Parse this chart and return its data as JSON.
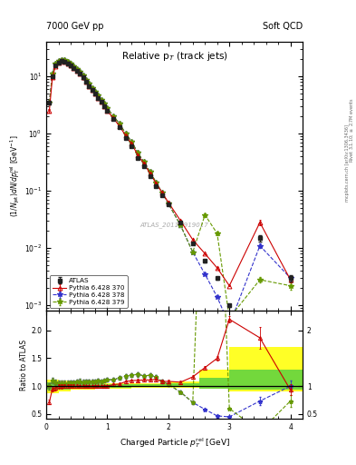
{
  "title_left": "7000 GeV pp",
  "title_right": "Soft QCD",
  "plot_title": "Relative p$_{T}$ (track jets)",
  "watermark": "ATLAS_2011_I919017",
  "atlas_x": [
    0.05,
    0.1,
    0.15,
    0.2,
    0.25,
    0.3,
    0.35,
    0.4,
    0.45,
    0.5,
    0.55,
    0.6,
    0.65,
    0.7,
    0.75,
    0.8,
    0.85,
    0.9,
    0.95,
    1.0,
    1.1,
    1.2,
    1.3,
    1.4,
    1.5,
    1.6,
    1.7,
    1.8,
    1.9,
    2.0,
    2.2,
    2.4,
    2.6,
    2.8,
    3.0,
    3.5,
    4.0
  ],
  "atlas_y": [
    3.5,
    10.0,
    15.5,
    17.5,
    18.5,
    18.0,
    17.0,
    15.5,
    14.0,
    12.5,
    11.0,
    9.5,
    8.0,
    6.8,
    5.8,
    5.0,
    4.2,
    3.6,
    3.0,
    2.5,
    1.8,
    1.3,
    0.85,
    0.6,
    0.38,
    0.27,
    0.18,
    0.12,
    0.085,
    0.058,
    0.028,
    0.012,
    0.006,
    0.003,
    0.001,
    0.015,
    0.003
  ],
  "atlas_ye": [
    0.3,
    0.5,
    0.7,
    0.8,
    0.8,
    0.7,
    0.7,
    0.6,
    0.5,
    0.5,
    0.4,
    0.4,
    0.3,
    0.3,
    0.2,
    0.2,
    0.15,
    0.13,
    0.1,
    0.09,
    0.06,
    0.05,
    0.03,
    0.025,
    0.015,
    0.011,
    0.007,
    0.005,
    0.003,
    0.002,
    0.001,
    0.0005,
    0.0003,
    0.00015,
    5e-05,
    0.002,
    0.0004
  ],
  "py370_x": [
    0.05,
    0.1,
    0.15,
    0.2,
    0.25,
    0.3,
    0.35,
    0.4,
    0.45,
    0.5,
    0.55,
    0.6,
    0.65,
    0.7,
    0.75,
    0.8,
    0.85,
    0.9,
    0.95,
    1.0,
    1.1,
    1.2,
    1.3,
    1.4,
    1.5,
    1.6,
    1.7,
    1.8,
    1.9,
    2.0,
    2.2,
    2.4,
    2.6,
    2.8,
    3.0,
    3.5,
    4.0
  ],
  "py370_y": [
    2.5,
    9.5,
    15.0,
    17.5,
    18.5,
    18.0,
    17.0,
    15.5,
    14.0,
    12.5,
    11.0,
    9.5,
    8.0,
    6.8,
    5.8,
    5.0,
    4.2,
    3.6,
    3.0,
    2.5,
    1.85,
    1.35,
    0.92,
    0.66,
    0.42,
    0.3,
    0.2,
    0.135,
    0.092,
    0.063,
    0.03,
    0.014,
    0.008,
    0.0045,
    0.0022,
    0.028,
    0.0028
  ],
  "py370_ye": [
    0.15,
    0.4,
    0.6,
    0.7,
    0.7,
    0.6,
    0.5,
    0.45,
    0.4,
    0.35,
    0.3,
    0.25,
    0.22,
    0.18,
    0.15,
    0.12,
    0.1,
    0.09,
    0.07,
    0.06,
    0.04,
    0.03,
    0.02,
    0.015,
    0.01,
    0.007,
    0.005,
    0.004,
    0.003,
    0.002,
    0.0008,
    0.0004,
    0.0002,
    0.0001,
    6e-05,
    0.003,
    0.0003
  ],
  "py378_x": [
    0.05,
    0.1,
    0.15,
    0.2,
    0.25,
    0.3,
    0.35,
    0.4,
    0.45,
    0.5,
    0.55,
    0.6,
    0.65,
    0.7,
    0.75,
    0.8,
    0.85,
    0.9,
    0.95,
    1.0,
    1.1,
    1.2,
    1.3,
    1.4,
    1.5,
    1.6,
    1.7,
    1.8,
    1.9,
    2.0,
    2.2,
    2.4,
    2.6,
    2.8,
    3.0,
    3.5,
    4.0
  ],
  "py378_y": [
    3.5,
    11.0,
    16.5,
    18.5,
    19.5,
    19.0,
    18.0,
    16.5,
    15.0,
    13.5,
    12.0,
    10.2,
    8.7,
    7.4,
    6.3,
    5.4,
    4.6,
    3.9,
    3.3,
    2.8,
    2.0,
    1.5,
    1.0,
    0.72,
    0.46,
    0.32,
    0.215,
    0.14,
    0.092,
    0.06,
    0.025,
    0.0085,
    0.0035,
    0.0014,
    0.00045,
    0.011,
    0.003
  ],
  "py378_ye": [
    0.2,
    0.5,
    0.7,
    0.8,
    0.8,
    0.7,
    0.65,
    0.55,
    0.5,
    0.45,
    0.4,
    0.35,
    0.3,
    0.25,
    0.2,
    0.18,
    0.15,
    0.12,
    0.1,
    0.085,
    0.06,
    0.045,
    0.03,
    0.022,
    0.014,
    0.01,
    0.007,
    0.004,
    0.003,
    0.002,
    0.0007,
    0.0003,
    0.00012,
    5e-05,
    2e-05,
    0.001,
    0.0003
  ],
  "py379_x": [
    0.05,
    0.1,
    0.15,
    0.2,
    0.25,
    0.3,
    0.35,
    0.4,
    0.45,
    0.5,
    0.55,
    0.6,
    0.65,
    0.7,
    0.75,
    0.8,
    0.85,
    0.9,
    0.95,
    1.0,
    1.1,
    1.2,
    1.3,
    1.4,
    1.5,
    1.6,
    1.7,
    1.8,
    1.9,
    2.0,
    2.2,
    2.4,
    2.6,
    2.8,
    3.0,
    3.5,
    4.0
  ],
  "py379_y": [
    3.5,
    11.0,
    16.5,
    18.5,
    19.5,
    19.0,
    18.0,
    16.5,
    15.0,
    13.5,
    12.0,
    10.2,
    8.7,
    7.4,
    6.3,
    5.4,
    4.6,
    3.9,
    3.3,
    2.8,
    2.0,
    1.5,
    1.0,
    0.72,
    0.46,
    0.32,
    0.215,
    0.14,
    0.092,
    0.06,
    0.025,
    0.0085,
    0.038,
    0.018,
    0.0006,
    0.0028,
    0.0022
  ],
  "py379_ye": [
    0.2,
    0.5,
    0.7,
    0.8,
    0.8,
    0.7,
    0.65,
    0.55,
    0.5,
    0.45,
    0.4,
    0.35,
    0.3,
    0.25,
    0.2,
    0.18,
    0.15,
    0.12,
    0.1,
    0.085,
    0.06,
    0.045,
    0.03,
    0.022,
    0.014,
    0.01,
    0.007,
    0.004,
    0.003,
    0.002,
    0.0007,
    0.0003,
    0.003,
    0.0015,
    2e-05,
    0.0003,
    0.0003
  ],
  "color_atlas": "#222222",
  "color_py370": "#cc0000",
  "color_py378": "#3333cc",
  "color_py379": "#669900",
  "band_yellow_edges": [
    0.0,
    0.2,
    0.4,
    0.6,
    0.8,
    1.0,
    1.2,
    1.4,
    1.6,
    1.8,
    2.0,
    2.5,
    3.0,
    4.2
  ],
  "band_yellow_lo": [
    0.88,
    0.9,
    0.93,
    0.94,
    0.95,
    0.95,
    0.96,
    0.97,
    0.97,
    0.97,
    0.97,
    0.95,
    0.9,
    0.9
  ],
  "band_yellow_hi": [
    1.12,
    1.1,
    1.08,
    1.07,
    1.06,
    1.06,
    1.05,
    1.05,
    1.05,
    1.05,
    1.08,
    1.3,
    1.7,
    2.3
  ],
  "band_green_edges": [
    0.0,
    0.2,
    0.4,
    0.6,
    0.8,
    1.0,
    1.2,
    1.4,
    1.6,
    1.8,
    2.0,
    2.5,
    3.0,
    4.2
  ],
  "band_green_lo": [
    0.93,
    0.94,
    0.96,
    0.97,
    0.97,
    0.97,
    0.97,
    0.98,
    0.98,
    0.98,
    0.98,
    0.96,
    0.94,
    0.93
  ],
  "band_green_hi": [
    1.07,
    1.06,
    1.04,
    1.03,
    1.03,
    1.03,
    1.04,
    1.04,
    1.04,
    1.04,
    1.05,
    1.15,
    1.3,
    1.7
  ],
  "xlim": [
    0.0,
    4.2
  ],
  "ylim_main": [
    0.0008,
    40
  ],
  "ylim_ratio": [
    0.42,
    2.35
  ],
  "yticks_ratio": [
    0.5,
    1.0,
    1.5,
    2.0
  ],
  "yticks_ratio_right": [
    0.5,
    1.0,
    2.0
  ]
}
